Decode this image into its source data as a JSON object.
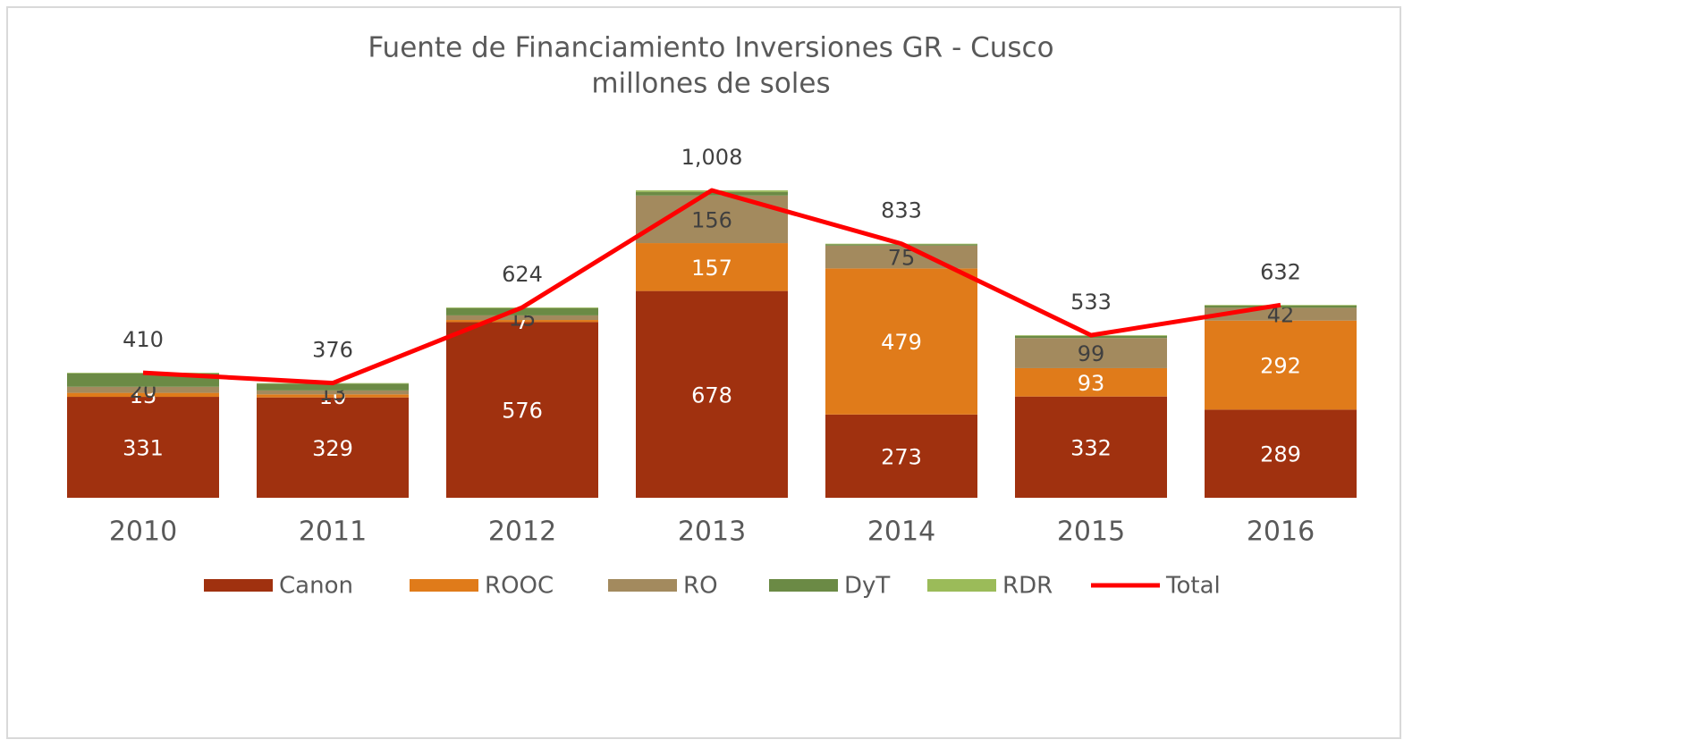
{
  "chart_data": {
    "type": "bar",
    "title": "Fuente de Financiamiento Inversiones GR - Cusco",
    "subtitle": "millones de soles",
    "stacked": true,
    "categories": [
      "2010",
      "2011",
      "2012",
      "2013",
      "2014",
      "2015",
      "2016"
    ],
    "series": [
      {
        "name": "Canon",
        "color": "#a0310f",
        "values": [
          331,
          329,
          576,
          678,
          273,
          332,
          289
        ],
        "labels_shown": true,
        "label_color": "#ffffff"
      },
      {
        "name": "ROOC",
        "color": "#e07b1a",
        "values": [
          13,
          10,
          7,
          157,
          479,
          93,
          292
        ],
        "labels_shown": true,
        "label_color": "#ffffff"
      },
      {
        "name": "RO",
        "color": "#a38a5e",
        "values": [
          20,
          13,
          15,
          156,
          75,
          99,
          42
        ],
        "labels_shown": true,
        "label_color": "#404040"
      },
      {
        "name": "DyT",
        "color": "#6b8a45",
        "values": [
          44,
          22,
          24,
          12,
          4,
          7,
          7
        ],
        "labels_shown": false
      },
      {
        "name": "RDR",
        "color": "#9bbb59",
        "values": [
          2,
          2,
          2,
          5,
          2,
          2,
          2
        ],
        "labels_shown": false
      },
      {
        "name": "Total",
        "type": "line",
        "color": "#ff0000",
        "values": [
          410,
          376,
          624,
          1008,
          833,
          533,
          632
        ],
        "value_labels": [
          "410",
          "376",
          "624",
          "1,008",
          "833",
          "533",
          "632"
        ]
      }
    ],
    "legend": "bottom",
    "grid": false
  }
}
